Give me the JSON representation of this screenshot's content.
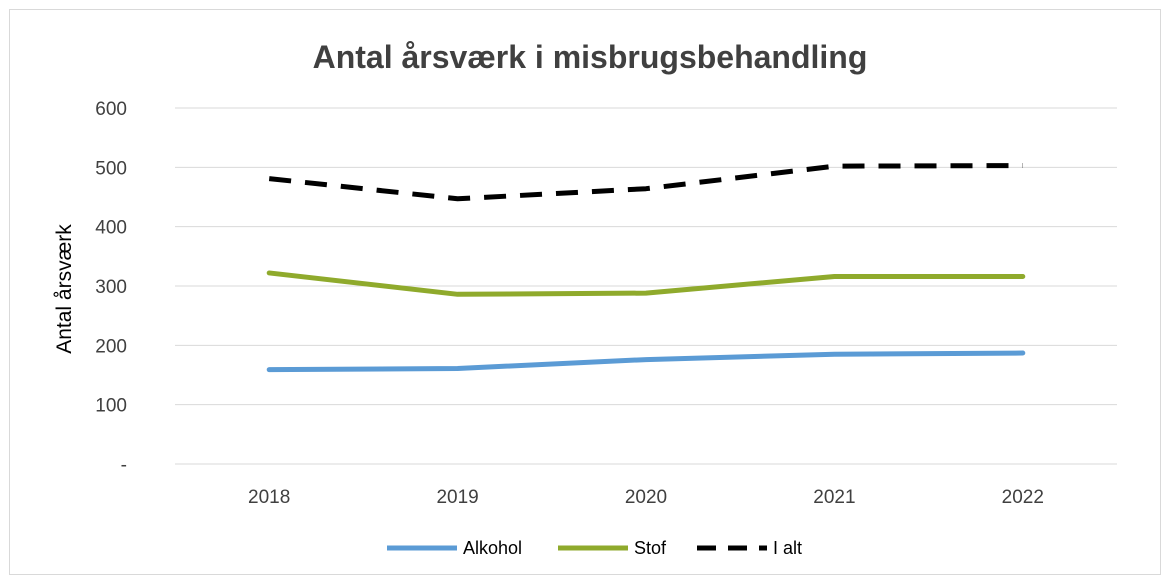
{
  "chart_data": {
    "type": "line",
    "title": "Antal årsværk i misbrugsbehandling",
    "xlabel": "",
    "ylabel": "Antal årsværk",
    "categories": [
      "2018",
      "2019",
      "2020",
      "2021",
      "2022"
    ],
    "ylim": [
      0,
      600
    ],
    "yticks": [
      0,
      100,
      200,
      300,
      400,
      500,
      600
    ],
    "ytick_labels": [
      "-",
      "100",
      "200",
      "300",
      "400",
      "500",
      "600"
    ],
    "grid": "horizontal",
    "legend_position": "bottom",
    "series": [
      {
        "name": "Alkohol",
        "values": [
          159,
          161,
          176,
          185,
          187
        ],
        "color": "#5b9bd5",
        "dash": "solid"
      },
      {
        "name": "Stof",
        "values": [
          322,
          286,
          288,
          316,
          316
        ],
        "color": "#8faa2c",
        "dash": "solid"
      },
      {
        "name": "I alt",
        "values": [
          481,
          447,
          464,
          502,
          503
        ],
        "color": "#000000",
        "dash": "dashed"
      }
    ]
  }
}
